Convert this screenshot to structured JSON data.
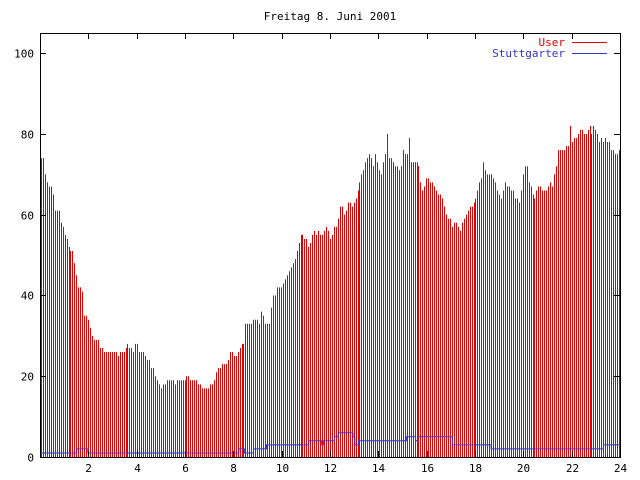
{
  "chart_data": {
    "type": "bar",
    "title": "Freitag 8. Juni 2001",
    "xlim": [
      0,
      24
    ],
    "ylim": [
      0,
      105
    ],
    "x_ticks": [
      2,
      4,
      6,
      8,
      10,
      12,
      14,
      16,
      18,
      20,
      22,
      24
    ],
    "y_ticks": [
      0,
      20,
      40,
      60,
      80,
      100
    ],
    "grid": false,
    "legend_position": "top-right",
    "series": [
      {
        "name": "User",
        "type": "bar",
        "color": "#dd0000",
        "interval_minutes": 5,
        "values": [
          74,
          74,
          70,
          68,
          67,
          67,
          65,
          61,
          61,
          61,
          58,
          57,
          55,
          54,
          52,
          51,
          51,
          48,
          45,
          42,
          42,
          41,
          35,
          35,
          34,
          32,
          30,
          29,
          29,
          29,
          27,
          27,
          26,
          26,
          26,
          26,
          26,
          26,
          26,
          25,
          26,
          26,
          26,
          27,
          28,
          27,
          27,
          26,
          28,
          28,
          26,
          26,
          26,
          25,
          24,
          24,
          22,
          22,
          20,
          19,
          18,
          17,
          18,
          18,
          19,
          19,
          19,
          19,
          18,
          19,
          19,
          19,
          19,
          19,
          20,
          20,
          19,
          19,
          19,
          19,
          18,
          18,
          17,
          17,
          17,
          17,
          18,
          18,
          19,
          21,
          22,
          22,
          23,
          23,
          23,
          24,
          26,
          26,
          25,
          25,
          26,
          27,
          28,
          28,
          33,
          33,
          33,
          33,
          34,
          34,
          34,
          33,
          36,
          35,
          33,
          33,
          33,
          37,
          40,
          40,
          42,
          42,
          42,
          43,
          44,
          45,
          46,
          47,
          48,
          49,
          51,
          53,
          55,
          55,
          54,
          54,
          52,
          53,
          55,
          56,
          55,
          56,
          55,
          55,
          56,
          57,
          56,
          54,
          55,
          57,
          57,
          59,
          62,
          62,
          60,
          61,
          63,
          63,
          62,
          63,
          64,
          66,
          68,
          70,
          71,
          73,
          74,
          75,
          74,
          72,
          75,
          73,
          71,
          70,
          73,
          75,
          80,
          74,
          74,
          73,
          72,
          72,
          71,
          72,
          76,
          75,
          75,
          79,
          73,
          73,
          73,
          73,
          72,
          68,
          66,
          67,
          69,
          69,
          68,
          68,
          67,
          66,
          65,
          65,
          64,
          62,
          60,
          59,
          59,
          57,
          58,
          58,
          57,
          56,
          58,
          59,
          60,
          61,
          62,
          62,
          63,
          64,
          66,
          68,
          69,
          73,
          71,
          70,
          70,
          70,
          69,
          68,
          66,
          65,
          64,
          66,
          68,
          67,
          67,
          66,
          66,
          64,
          64,
          63,
          66,
          70,
          72,
          72,
          68,
          67,
          65,
          64,
          66,
          67,
          67,
          66,
          66,
          66,
          67,
          68,
          67,
          70,
          72,
          76,
          76,
          76,
          76,
          77,
          77,
          82,
          78,
          79,
          79,
          80,
          81,
          81,
          80,
          80,
          81,
          82,
          80,
          82,
          81,
          80,
          78,
          79,
          78,
          79,
          78,
          78,
          76,
          76,
          75,
          75,
          76
        ]
      },
      {
        "name": "Stuttgarter",
        "type": "line",
        "color": "#3333cc",
        "interval_minutes": 5,
        "values": [
          1,
          1,
          1,
          1,
          1,
          1,
          1,
          1,
          1,
          1,
          1,
          1,
          1,
          1,
          1,
          1,
          1,
          1,
          1,
          1,
          2,
          2,
          2,
          2,
          2,
          2,
          1,
          1,
          1,
          1,
          1,
          1,
          1,
          1,
          1,
          1,
          1,
          1,
          1,
          1,
          1,
          1,
          1,
          1,
          1,
          1,
          1,
          1,
          1,
          1,
          1,
          1,
          1,
          1,
          1,
          1,
          1,
          1,
          1,
          1,
          1,
          1,
          1,
          1,
          1,
          1,
          1,
          1,
          1,
          1,
          1,
          1,
          1,
          1,
          1,
          1,
          1,
          1,
          1,
          1,
          1,
          1,
          1,
          1,
          1,
          1,
          1,
          1,
          1,
          1,
          1,
          1,
          1,
          1,
          1,
          1,
          1,
          1,
          1,
          1,
          1,
          1,
          1,
          1,
          1,
          1,
          1,
          1,
          2,
          2,
          2,
          1,
          1,
          1,
          1,
          1,
          2,
          2,
          2,
          2,
          2,
          2,
          2,
          3,
          3,
          3,
          3,
          3,
          3,
          3,
          3,
          3,
          3,
          3,
          3,
          3,
          3,
          3,
          3,
          3,
          3,
          3,
          3,
          3,
          3,
          3,
          4,
          4,
          4,
          4,
          4,
          4,
          4,
          3,
          4,
          4,
          4,
          4,
          4,
          4,
          5,
          5,
          6,
          6,
          6,
          6,
          6,
          6,
          6,
          6,
          5,
          3,
          3,
          4,
          4,
          4,
          4,
          4,
          4,
          4,
          4,
          4,
          4,
          4,
          4,
          4,
          4,
          4,
          4,
          4,
          4,
          4,
          4,
          4,
          4,
          4,
          4,
          4,
          4,
          5,
          5,
          5,
          5,
          5,
          4,
          5,
          5,
          5,
          5,
          5,
          5,
          5,
          5,
          5,
          5,
          5,
          5,
          5,
          5,
          5,
          5,
          5,
          5,
          5,
          3,
          3,
          3,
          3,
          3,
          3,
          3,
          3,
          3,
          3,
          3,
          3,
          3,
          3,
          3,
          3,
          3,
          3,
          3,
          3,
          3,
          2,
          2,
          2,
          2,
          2,
          2,
          2,
          2,
          2,
          2,
          2,
          2,
          2,
          2,
          2,
          2,
          2,
          2,
          2,
          2,
          2,
          2,
          2,
          2,
          2,
          2,
          2,
          2,
          2,
          2,
          2,
          2,
          2,
          2,
          2,
          2,
          2,
          2,
          2,
          2,
          2,
          2,
          2,
          2,
          2,
          2,
          2,
          2,
          2,
          2,
          2,
          2,
          2,
          2,
          2,
          2,
          2,
          2,
          2,
          2,
          2,
          3,
          3,
          3,
          3,
          3,
          3,
          3,
          3,
          3
        ]
      }
    ]
  }
}
